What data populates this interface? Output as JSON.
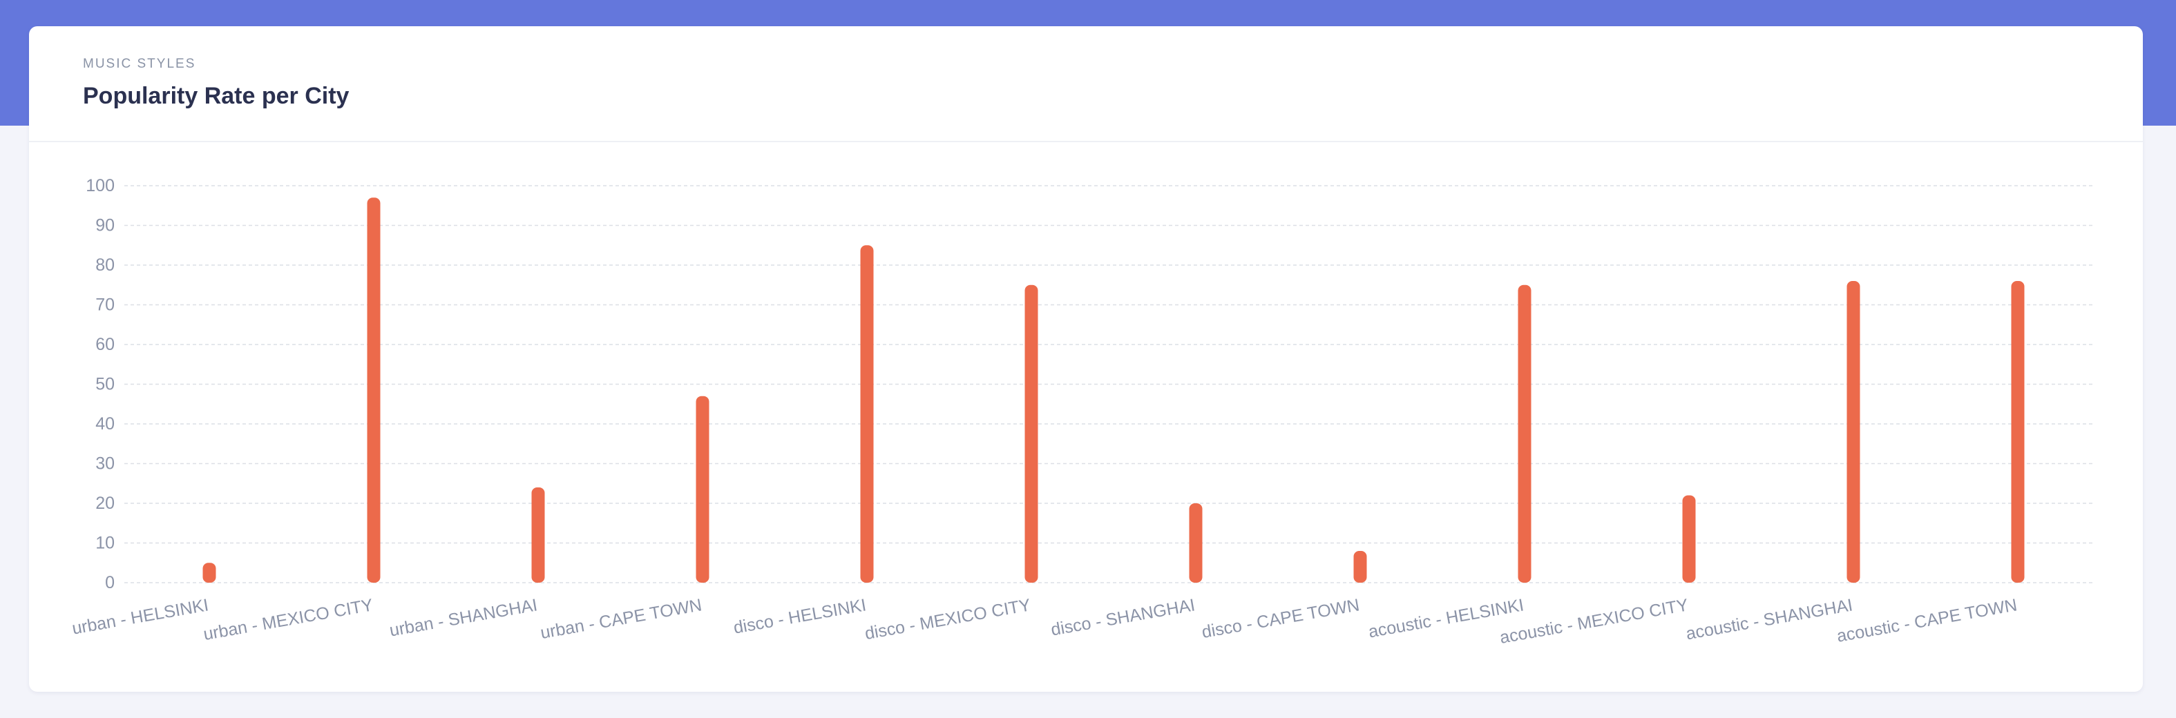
{
  "card": {
    "eyebrow": "MUSIC STYLES",
    "title": "Popularity Rate per City"
  },
  "colors": {
    "header_band": "#6477dc",
    "bar": "#ec6a4b",
    "grid": "#dcdfe6",
    "text": "#8b93a7"
  },
  "chart_data": {
    "type": "bar",
    "categories": [
      "urban - HELSINKI",
      "urban - MEXICO CITY",
      "urban - SHANGHAI",
      "urban - CAPE TOWN",
      "disco - HELSINKI",
      "disco - MEXICO CITY",
      "disco - SHANGHAI",
      "disco - CAPE TOWN",
      "acoustic - HELSINKI",
      "acoustic - MEXICO CITY",
      "acoustic - SHANGHAI",
      "acoustic - CAPE TOWN"
    ],
    "values": [
      5,
      97,
      24,
      47,
      85,
      75,
      20,
      8,
      75,
      22,
      76,
      76
    ],
    "ylim": [
      0,
      100
    ],
    "yticks": [
      "0",
      "10",
      "20",
      "30",
      "40",
      "50",
      "60",
      "70",
      "80",
      "90",
      "100"
    ],
    "grid": true,
    "legend": "none"
  }
}
